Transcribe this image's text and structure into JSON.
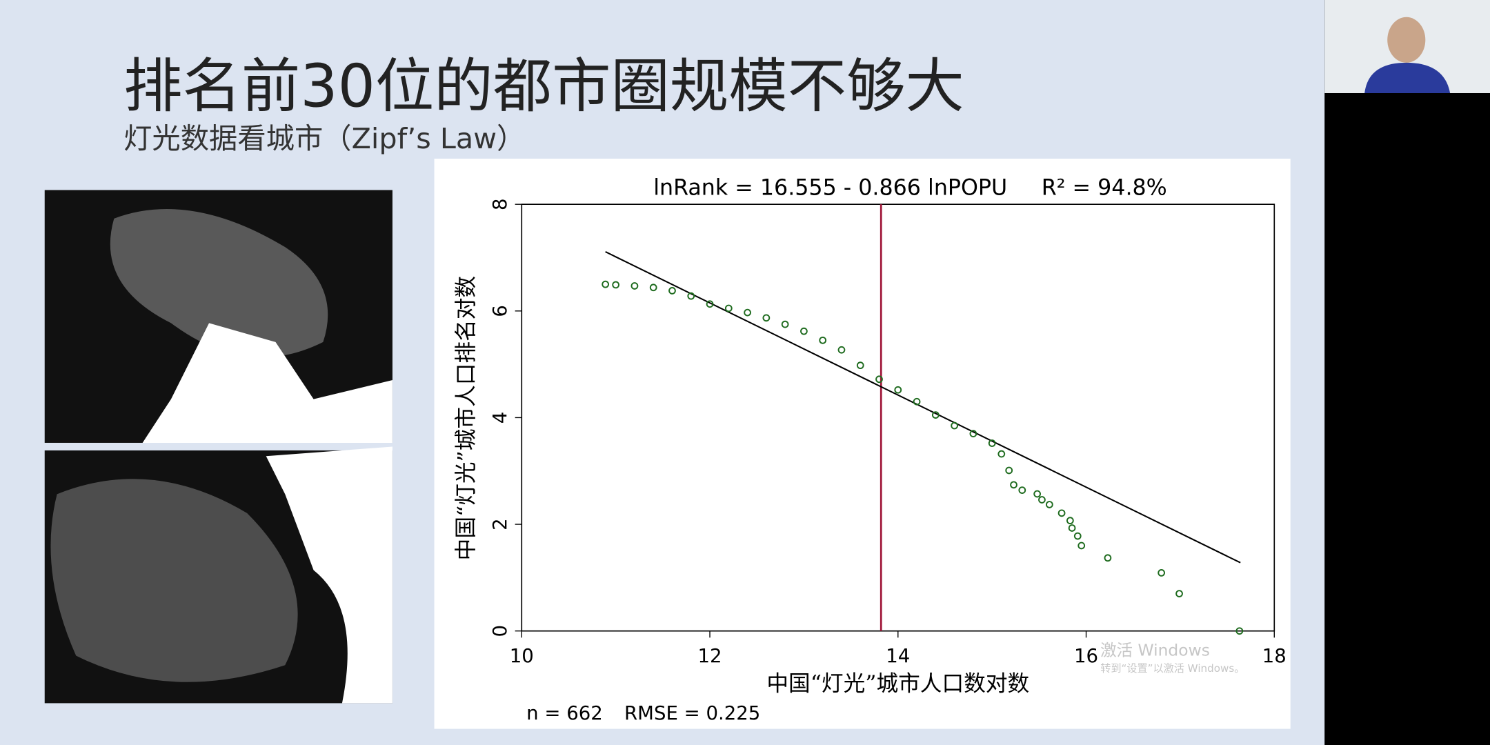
{
  "slide": {
    "title": "排名前30位的都市圈规模不够大",
    "subtitle": "灯光数据看城市（Zipf’s Law）"
  },
  "chart_data": {
    "type": "scatter",
    "title": "lnRank = 16.555 - 0.866 lnPOPU",
    "r2_label": "R² = 94.8%",
    "x_label": "中国“灯光”城市人口数对数",
    "y_label": "中国“灯光”城市人口排名对数",
    "n_label": "n = 662",
    "rmse_label": "RMSE = 0.225",
    "xlim": [
      10,
      18
    ],
    "ylim": [
      0,
      8
    ],
    "xticks": [
      10,
      12,
      14,
      16,
      18
    ],
    "yticks": [
      0,
      2,
      4,
      6,
      8
    ],
    "color": "#1e6b1e",
    "x": [
      10.89,
      11.0,
      11.2,
      11.4,
      11.6,
      11.8,
      12.0,
      12.2,
      12.4,
      12.6,
      12.8,
      13.0,
      13.2,
      13.4,
      13.6,
      13.8,
      14.0,
      14.2,
      14.4,
      14.6,
      14.8,
      15.0,
      15.1,
      15.18,
      15.23,
      15.32,
      15.48,
      15.53,
      15.61,
      15.74,
      15.83,
      15.85,
      15.91,
      15.95,
      16.23,
      16.8,
      16.99,
      17.63
    ],
    "values": [
      6.5,
      6.49,
      6.47,
      6.44,
      6.38,
      6.28,
      6.13,
      6.05,
      5.97,
      5.87,
      5.75,
      5.62,
      5.45,
      5.27,
      4.98,
      4.72,
      4.52,
      4.3,
      4.05,
      3.85,
      3.7,
      3.52,
      3.32,
      3.01,
      2.74,
      2.64,
      2.57,
      2.46,
      2.37,
      2.21,
      2.07,
      1.93,
      1.78,
      1.6,
      1.37,
      1.09,
      0.7,
      0.0
    ],
    "fit_line": {
      "x": [
        10.89,
        17.64
      ],
      "values": [
        7.11,
        1.28
      ],
      "color": "#000000"
    },
    "vline": {
      "x": 13.82,
      "color": "#a0183a"
    }
  },
  "watermark": {
    "line1": "激活 Windows",
    "line2": "转到“设置”以激活 Windows。"
  }
}
